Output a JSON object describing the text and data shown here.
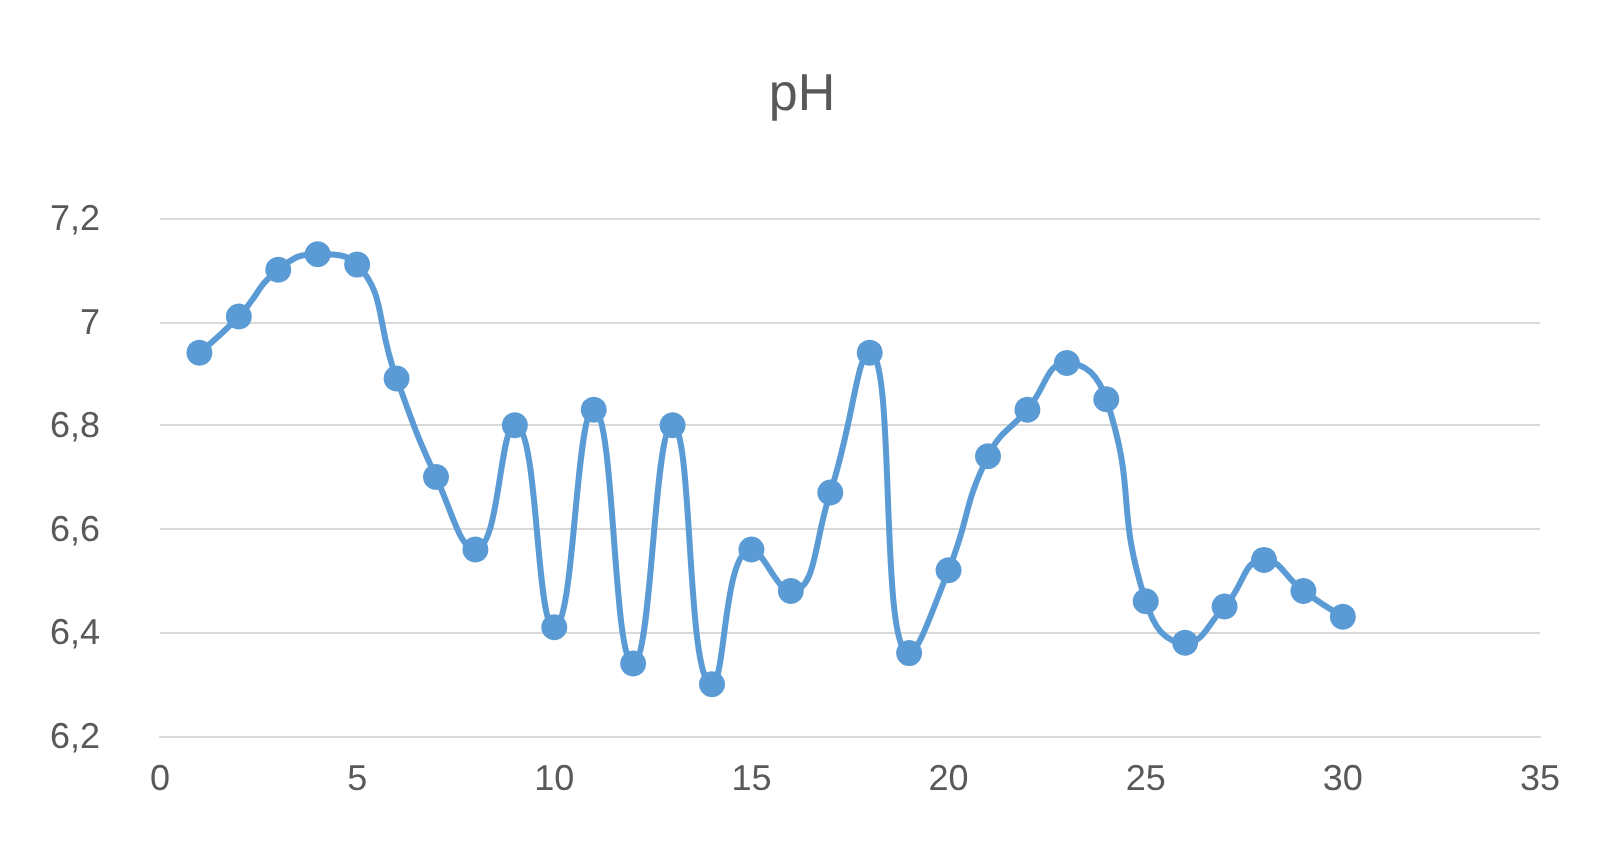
{
  "chart_data": {
    "type": "line",
    "title": "pH",
    "x": [
      1,
      2,
      3,
      4,
      5,
      6,
      7,
      8,
      9,
      10,
      11,
      12,
      13,
      14,
      15,
      16,
      17,
      18,
      19,
      20,
      21,
      22,
      23,
      24,
      25,
      26,
      27,
      28,
      29,
      30
    ],
    "series": [
      {
        "color": "#5b9bd5",
        "values": [
          6.94,
          7.01,
          7.1,
          7.13,
          7.11,
          6.89,
          6.7,
          6.56,
          6.8,
          6.41,
          6.83,
          6.34,
          6.8,
          6.3,
          6.56,
          6.48,
          6.67,
          6.94,
          6.36,
          6.52,
          6.74,
          6.83,
          6.92,
          6.85,
          6.46,
          6.38,
          6.45,
          6.54,
          6.48,
          6.43
        ]
      }
    ],
    "xlim": [
      0,
      35
    ],
    "xticks": [
      0,
      5,
      10,
      15,
      20,
      25,
      30,
      35
    ],
    "ylim": [
      6.2,
      7.2
    ],
    "yticks": [
      {
        "value": 6.2,
        "label": "6,2"
      },
      {
        "value": 6.4,
        "label": "6,4"
      },
      {
        "value": 6.6,
        "label": "6,6"
      },
      {
        "value": 6.8,
        "label": "6,8"
      },
      {
        "value": 7,
        "label": "7"
      },
      {
        "value": 7.2,
        "label": "7,2"
      }
    ],
    "grid": "y",
    "marker": "circle"
  }
}
